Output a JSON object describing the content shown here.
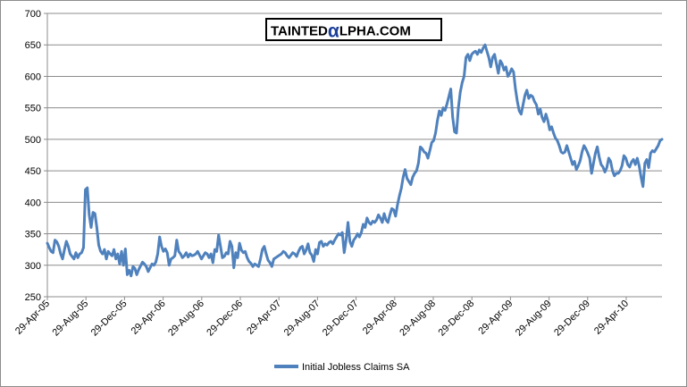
{
  "chart_data": {
    "type": "line",
    "title": "",
    "xlabel": "",
    "ylabel": "",
    "ylim": [
      250,
      700
    ],
    "yticks": [
      250,
      300,
      350,
      400,
      450,
      500,
      550,
      600,
      650,
      700
    ],
    "xticks": [
      "29-Apr-05",
      "29-Aug-05",
      "29-Dec-05",
      "29-Apr-06",
      "29-Aug-06",
      "29-Dec-06",
      "29-Apr-07",
      "29-Aug-07",
      "29-Dec-07",
      "29-Apr-08",
      "29-Aug-08",
      "29-Dec-08",
      "29-Apr-09",
      "29-Aug-09",
      "29-Dec-09",
      "29-Apr-10"
    ],
    "grid": "horizontal",
    "legend": "bottom",
    "watermark": {
      "left": "TAINTED",
      "alpha": "α",
      "right": "LPHA.COM"
    },
    "series": [
      {
        "name": "Initial Jobless Claims SA",
        "color": "#4f81bd",
        "values": [
          335,
          328,
          322,
          320,
          340,
          337,
          330,
          318,
          310,
          325,
          338,
          330,
          318,
          314,
          310,
          320,
          312,
          318,
          320,
          328,
          420,
          423,
          380,
          360,
          384,
          382,
          360,
          332,
          322,
          318,
          325,
          310,
          322,
          318,
          315,
          325,
          310,
          318,
          302,
          322,
          300,
          326,
          285,
          292,
          283,
          298,
          295,
          285,
          293,
          299,
          305,
          302,
          298,
          290,
          296,
          302,
          300,
          305,
          318,
          345,
          330,
          322,
          326,
          320,
          300,
          310,
          312,
          315,
          340,
          322,
          318,
          312,
          315,
          320,
          313,
          318,
          315,
          316,
          318,
          322,
          316,
          310,
          315,
          320,
          318,
          312,
          318,
          304,
          325,
          322,
          348,
          330,
          312,
          314,
          320,
          318,
          338,
          330,
          296,
          320,
          312,
          335,
          324,
          320,
          322,
          312,
          306,
          303,
          298,
          302,
          300,
          298,
          310,
          325,
          330,
          318,
          308,
          304,
          298,
          310,
          312,
          314,
          316,
          318,
          322,
          320,
          315,
          312,
          316,
          320,
          318,
          314,
          322,
          328,
          330,
          318,
          324,
          334,
          320,
          316,
          306,
          325,
          318,
          336,
          338,
          330,
          334,
          332,
          336,
          338,
          334,
          340,
          345,
          350,
          348,
          352,
          320,
          340,
          368,
          338,
          330,
          340,
          344,
          350,
          345,
          352,
          365,
          360,
          375,
          368,
          365,
          370,
          368,
          372,
          380,
          375,
          368,
          382,
          372,
          368,
          380,
          390,
          388,
          378,
          396,
          410,
          422,
          440,
          452,
          438,
          433,
          428,
          440,
          446,
          450,
          462,
          488,
          485,
          480,
          478,
          470,
          482,
          495,
          498,
          510,
          530,
          545,
          538,
          550,
          546,
          556,
          568,
          580,
          535,
          512,
          510,
          550,
          575,
          590,
          600,
          630,
          635,
          625,
          635,
          638,
          640,
          635,
          642,
          638,
          645,
          650,
          640,
          630,
          615,
          630,
          635,
          620,
          605,
          625,
          620,
          610,
          615,
          600,
          605,
          612,
          607,
          580,
          560,
          545,
          540,
          555,
          570,
          578,
          565,
          570,
          568,
          560,
          555,
          540,
          548,
          535,
          528,
          540,
          530,
          515,
          520,
          510,
          502,
          498,
          490,
          480,
          478,
          480,
          490,
          480,
          470,
          460,
          465,
          452,
          458,
          466,
          480,
          490,
          485,
          478,
          470,
          446,
          462,
          478,
          488,
          472,
          460,
          456,
          448,
          455,
          470,
          465,
          450,
          442,
          446,
          446,
          450,
          458,
          474,
          470,
          460,
          456,
          464,
          468,
          460,
          470,
          458,
          440,
          425,
          462,
          468,
          455,
          478,
          482,
          480,
          485,
          490,
          498,
          500
        ]
      }
    ]
  }
}
